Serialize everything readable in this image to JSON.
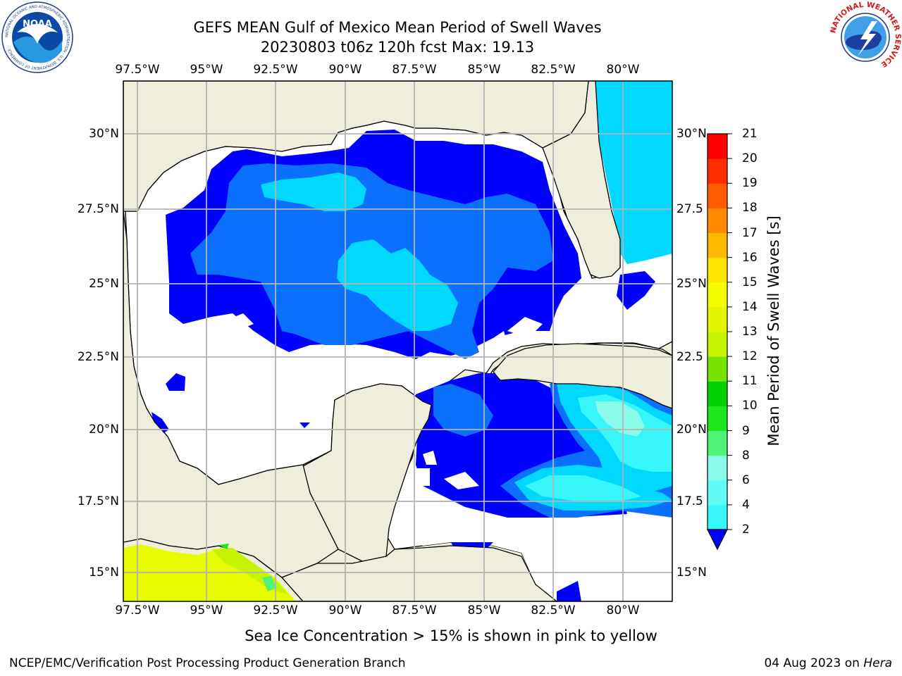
{
  "title": {
    "line1": "GEFS MEAN Gulf of Mexico Mean Period of Swell Waves",
    "line2": "20230803 t06z 120h fcst   Max: 19.13"
  },
  "logos": {
    "noaa": {
      "text": "NOAA",
      "ring_text": "NATIONAL OCEANIC AND ATMOSPHERIC ADMINISTRATION · U.S. DEPARTMENT OF COMMERCE"
    },
    "nws": {
      "ring_text": "NATIONAL WEATHER SERVICE"
    }
  },
  "map": {
    "lon_ticks": [
      "97.5°W",
      "95°W",
      "92.5°W",
      "90°W",
      "87.5°W",
      "85°W",
      "82.5°W",
      "80°W"
    ],
    "lat_ticks_left": [
      "30°N",
      "27.5°N",
      "25°N",
      "22.5°N",
      "20°N",
      "17.5°N",
      "15°N"
    ],
    "lat_ticks_right": [
      "30°N",
      "27.5",
      "25°N",
      "22.5",
      "20°N",
      "17.5",
      "15°N"
    ],
    "colors": {
      "land": "#efeedc",
      "ocean_missing": "#ffffff",
      "gridline": "#b3b3b3",
      "coast": "#000000"
    }
  },
  "colorbar": {
    "label": "Mean Period of Swell Waves [s]",
    "ticks": [
      "2",
      "4",
      "6",
      "8",
      "9",
      "10",
      "11",
      "12",
      "13",
      "14",
      "15",
      "16",
      "17",
      "18",
      "19",
      "20",
      "21"
    ],
    "colors": [
      "#0c70ff",
      "#00d8ff",
      "#36f6fa",
      "#60fcf5",
      "#8afce9",
      "#4ff477",
      "#1ee61c",
      "#00d200",
      "#76e400",
      "#c6f400",
      "#e2f600",
      "#f4fc00",
      "#ffe600",
      "#ffb800",
      "#ff8a00",
      "#ff5c00",
      "#ff2e00",
      "#ff0000"
    ],
    "extend_color": "#0000ff"
  },
  "footnote": "Sea Ice Concentration > 15% is shown in pink to yellow",
  "credits": {
    "left": "NCEP/EMC/Verification Post Processing Product Generation Branch",
    "right_date": "04 Aug 2023 on ",
    "right_host": "Hera"
  }
}
